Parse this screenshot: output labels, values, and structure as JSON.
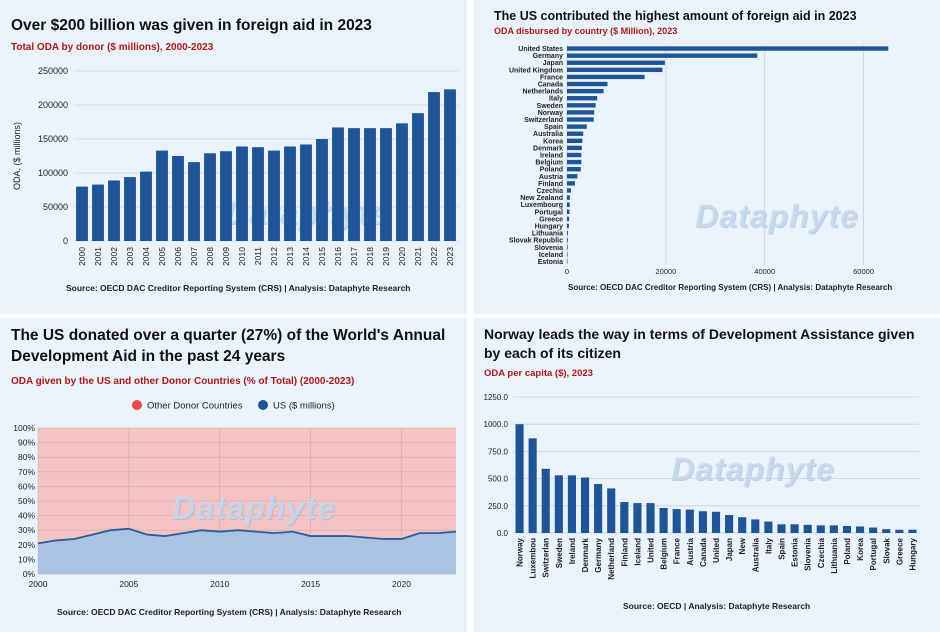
{
  "watermark": "Dataphyte",
  "charts": [
    {
      "title": "Over $200 billion was given in foreign aid in 2023",
      "subtitle": "Total ODA by donor ($ millions), 2000-2023",
      "source": "Source: OECD DAC Creditor Reporting System (CRS) | Analysis: Dataphyte Research"
    },
    {
      "title": "The US contributed the highest amount of foreign aid in 2023",
      "subtitle": "ODA disbursed by country ($ Million), 2023",
      "source": "Source: OECD DAC Creditor Reporting System (CRS) | Analysis: Dataphyte Research"
    },
    {
      "title_line1": "The US donated over a quarter (27%) of the World's Annual",
      "title_line2": "Development Aid in the past 24 years",
      "subtitle": "ODA given by the US and other Donor Countries (% of Total) (2000-2023)",
      "source": "Source: OECD DAC Creditor Reporting System (CRS) | Analysis: Dataphyte Research"
    },
    {
      "title_line1": "Norway leads the way in terms of Development Assistance given",
      "title_line2": "by each of its citizen",
      "subtitle": "ODA per capita ($), 2023",
      "source": "Source: OECD | Analysis: Dataphyte Research"
    }
  ],
  "colors": {
    "bar": "#1f5597",
    "other_area": "#f4c4c4",
    "us_area": "#a9c4e2",
    "us_line": "#2b5d98",
    "other_dot": "#e84b4b",
    "us_dot": "#1f5597"
  },
  "chart_data": [
    {
      "type": "bar",
      "categories": [
        "2000",
        "2001",
        "2002",
        "2003",
        "2004",
        "2005",
        "2006",
        "2007",
        "2008",
        "2009",
        "2010",
        "2011",
        "2012",
        "2013",
        "2014",
        "2015",
        "2016",
        "2017",
        "2018",
        "2019",
        "2020",
        "2021",
        "2022",
        "2023"
      ],
      "values": [
        80000,
        83000,
        89000,
        94000,
        102000,
        133000,
        125000,
        116000,
        129000,
        132000,
        139000,
        138000,
        133000,
        139000,
        142000,
        150000,
        167000,
        166000,
        166000,
        166000,
        173000,
        188000,
        219000,
        223000
      ],
      "ylabel": "ODA, ($ millions)",
      "ylim": [
        0,
        250000
      ],
      "yticks": [
        "0",
        "50000",
        "100000",
        "150000",
        "200000",
        "250000"
      ],
      "ytick_values": [
        0,
        50000,
        100000,
        150000,
        200000,
        250000
      ],
      "grid": true
    },
    {
      "type": "bar",
      "orientation": "horizontal",
      "categories": [
        "United States",
        "Germany",
        "Japan",
        "United Kingdom",
        "France",
        "Canada",
        "Netherlands",
        "Italy",
        "Sweden",
        "Norway",
        "Switzerland",
        "Spain",
        "Australia",
        "Korea",
        "Denmark",
        "Ireland",
        "Belgium",
        "Poland",
        "Austria",
        "Finland",
        "Czechia",
        "New Zealand",
        "Luxembourg",
        "Portugal",
        "Greece",
        "Hungary",
        "Lithuania",
        "Slovak Republic",
        "Slovenia",
        "Iceland",
        "Estonia"
      ],
      "values": [
        65000,
        38500,
        19800,
        19300,
        15700,
        8200,
        7400,
        6100,
        5800,
        5500,
        5400,
        4000,
        3300,
        3100,
        3000,
        2900,
        2900,
        2800,
        2100,
        1600,
        800,
        600,
        550,
        500,
        420,
        380,
        180,
        160,
        140,
        100,
        60
      ],
      "xlim": [
        0,
        70000
      ],
      "xticks": [
        "0",
        "20000",
        "40000",
        "60000"
      ],
      "xtick_values": [
        0,
        20000,
        40000,
        60000
      ],
      "grid": true
    },
    {
      "type": "area",
      "stacked_percent": true,
      "x": [
        2000,
        2001,
        2002,
        2003,
        2004,
        2005,
        2006,
        2007,
        2008,
        2009,
        2010,
        2011,
        2012,
        2013,
        2014,
        2015,
        2016,
        2017,
        2018,
        2019,
        2020,
        2021,
        2022,
        2023
      ],
      "series": [
        {
          "name": "Other Donor Countries",
          "values": [
            79,
            77,
            76,
            73,
            70,
            69,
            73,
            74,
            72,
            70,
            71,
            70,
            71,
            72,
            71,
            74,
            74,
            74,
            75,
            76,
            76,
            72,
            72,
            71
          ]
        },
        {
          "name": "US ($ millions)",
          "values": [
            21,
            23,
            24,
            27,
            30,
            31,
            27,
            26,
            28,
            30,
            29,
            30,
            29,
            28,
            29,
            26,
            26,
            26,
            25,
            24,
            24,
            28,
            28,
            29
          ]
        }
      ],
      "ylim": [
        0,
        100
      ],
      "yticks": [
        "0%",
        "10%",
        "20%",
        "30%",
        "40%",
        "50%",
        "60%",
        "70%",
        "80%",
        "90%",
        "100%"
      ],
      "xticks": [
        "2000",
        "2005",
        "2010",
        "2015",
        "2020"
      ],
      "xtick_values": [
        2000,
        2005,
        2010,
        2015,
        2020
      ],
      "legend": "top-center"
    },
    {
      "type": "bar",
      "categories": [
        "Norway",
        "Luxembou",
        "Switzerlan",
        "Sweden",
        "Ireland",
        "Denmark",
        "Germany",
        "Netherland",
        "Finland",
        "Iceland",
        "United",
        "Belgium",
        "France",
        "Austria",
        "Canada",
        "United",
        "Japan",
        "New",
        "Australia",
        "Italy",
        "Spain",
        "Estonia",
        "Slovenia",
        "Czechia",
        "Lithuania",
        "Poland",
        "Korea",
        "Portugal",
        "Slovak",
        "Greece",
        "Hungary"
      ],
      "values": [
        1000,
        870,
        590,
        530,
        530,
        510,
        450,
        410,
        285,
        275,
        275,
        230,
        220,
        215,
        200,
        195,
        165,
        145,
        125,
        105,
        80,
        80,
        75,
        70,
        70,
        65,
        60,
        50,
        35,
        30,
        30
      ],
      "ylim": [
        0,
        1250
      ],
      "yticks": [
        "0.0",
        "250.0",
        "500.0",
        "750.0",
        "1000.0",
        "1250.0"
      ],
      "ytick_values": [
        0,
        250,
        500,
        750,
        1000,
        1250
      ],
      "grid": true
    }
  ]
}
